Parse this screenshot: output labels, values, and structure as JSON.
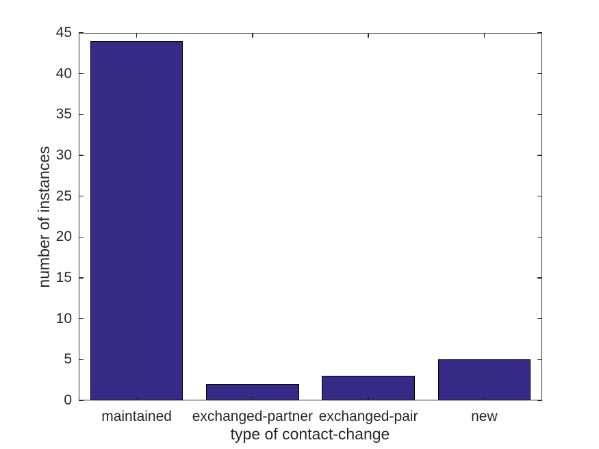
{
  "figure": {
    "background_color": "#ffffff"
  },
  "chart_data": {
    "type": "bar",
    "categories": [
      "maintained",
      "exchanged-partner",
      "exchanged-pair",
      "new"
    ],
    "values": [
      44,
      2,
      3,
      5
    ],
    "title": "",
    "xlabel": "type of contact-change",
    "ylabel": "number of instances",
    "ylim": [
      0,
      45
    ],
    "yticks": [
      0,
      5,
      10,
      15,
      20,
      25,
      30,
      35,
      40,
      45
    ],
    "grid": false,
    "legend": "none",
    "bar_width_fraction": 0.8,
    "bar_color": "#352B86",
    "bar_edge_color": "#000000",
    "axis_color": "#262626",
    "text_color": "#262626"
  }
}
